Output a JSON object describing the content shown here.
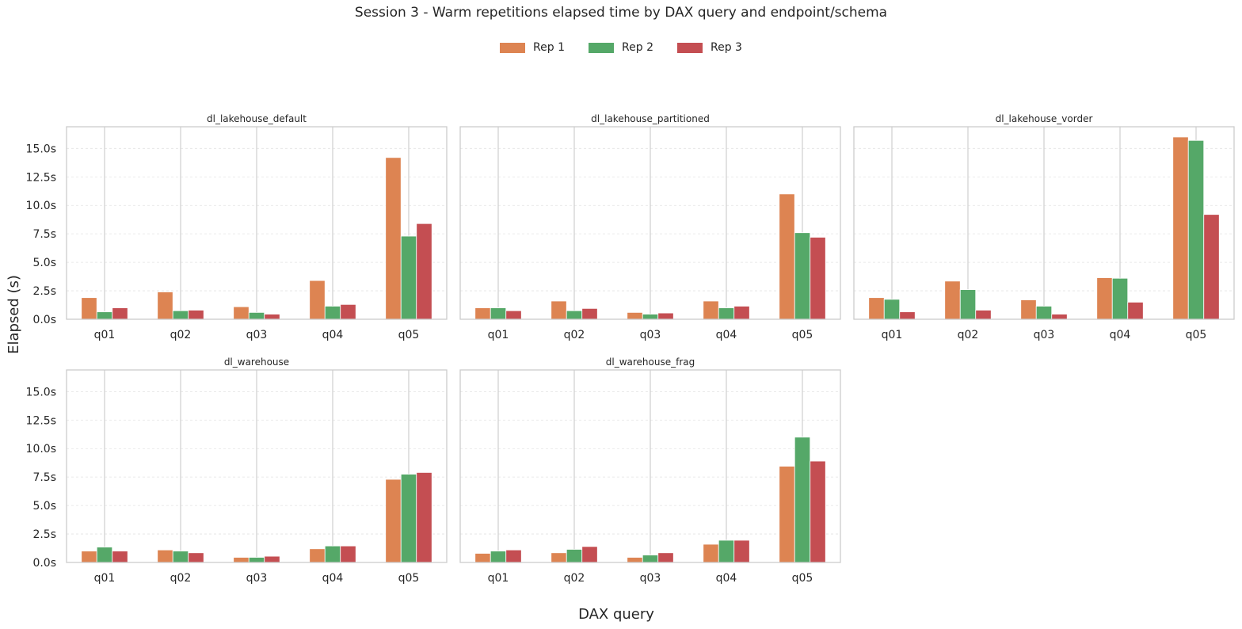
{
  "chart_data": {
    "type": "bar",
    "title": "Session 3 - Warm repetitions elapsed time by DAX query and endpoint/schema",
    "xlabel": "DAX query",
    "ylabel": "Elapsed (s)",
    "ylim": [
      0,
      16.9
    ],
    "yticks": [
      "0.0s",
      "2.5s",
      "5.0s",
      "7.5s",
      "10.0s",
      "12.5s",
      "15.0s"
    ],
    "categories": [
      "q01",
      "q02",
      "q03",
      "q04",
      "q05"
    ],
    "legend": {
      "position": "top-center",
      "items": [
        {
          "name": "Rep 1",
          "color": "#dd8452"
        },
        {
          "name": "Rep 2",
          "color": "#55a868"
        },
        {
          "name": "Rep 3",
          "color": "#c44e52"
        }
      ]
    },
    "grid": true,
    "panels": [
      {
        "title": "dl_lakehouse_default",
        "series": [
          {
            "name": "Rep 1",
            "values": [
              1.9,
              2.4,
              1.1,
              3.4,
              14.2
            ]
          },
          {
            "name": "Rep 2",
            "values": [
              0.65,
              0.75,
              0.6,
              1.15,
              7.3
            ]
          },
          {
            "name": "Rep 3",
            "values": [
              1.0,
              0.8,
              0.45,
              1.3,
              8.4
            ]
          }
        ]
      },
      {
        "title": "dl_lakehouse_partitioned",
        "series": [
          {
            "name": "Rep 1",
            "values": [
              1.0,
              1.6,
              0.6,
              1.6,
              11.0
            ]
          },
          {
            "name": "Rep 2",
            "values": [
              1.0,
              0.75,
              0.45,
              1.0,
              7.6
            ]
          },
          {
            "name": "Rep 3",
            "values": [
              0.75,
              0.95,
              0.55,
              1.15,
              7.2
            ]
          }
        ]
      },
      {
        "title": "dl_lakehouse_vorder",
        "series": [
          {
            "name": "Rep 1",
            "values": [
              1.9,
              3.35,
              1.7,
              3.65,
              16.0
            ]
          },
          {
            "name": "Rep 2",
            "values": [
              1.75,
              2.6,
              1.15,
              3.6,
              15.7
            ]
          },
          {
            "name": "Rep 3",
            "values": [
              0.65,
              0.8,
              0.45,
              1.5,
              9.2
            ]
          }
        ]
      },
      {
        "title": "dl_warehouse",
        "series": [
          {
            "name": "Rep 1",
            "values": [
              1.0,
              1.1,
              0.45,
              1.2,
              7.3
            ]
          },
          {
            "name": "Rep 2",
            "values": [
              1.35,
              1.0,
              0.45,
              1.45,
              7.75
            ]
          },
          {
            "name": "Rep 3",
            "values": [
              1.0,
              0.85,
              0.55,
              1.45,
              7.9
            ]
          }
        ]
      },
      {
        "title": "dl_warehouse_frag",
        "series": [
          {
            "name": "Rep 1",
            "values": [
              0.8,
              0.85,
              0.45,
              1.6,
              8.45
            ]
          },
          {
            "name": "Rep 2",
            "values": [
              1.0,
              1.15,
              0.65,
              1.95,
              11.0
            ]
          },
          {
            "name": "Rep 3",
            "values": [
              1.1,
              1.4,
              0.85,
              1.95,
              8.9
            ]
          }
        ]
      }
    ]
  }
}
